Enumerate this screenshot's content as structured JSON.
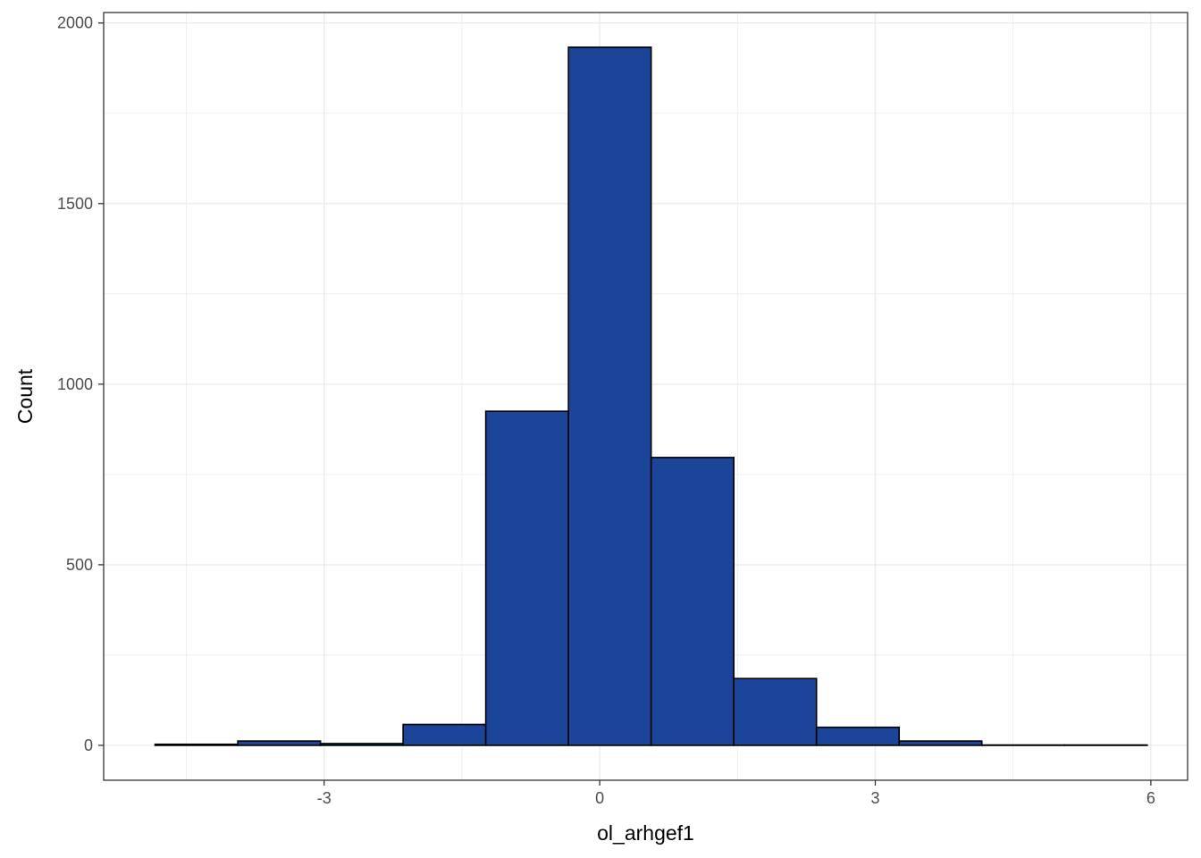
{
  "chart_data": {
    "type": "bar",
    "subtype": "histogram",
    "title": "",
    "xlabel": "ol_arhgef1",
    "ylabel": "Count",
    "bins": [
      {
        "x0": -4.84,
        "x1": -3.94,
        "count": 3
      },
      {
        "x0": -3.94,
        "x1": -3.04,
        "count": 12
      },
      {
        "x0": -3.04,
        "x1": -2.14,
        "count": 5
      },
      {
        "x0": -2.14,
        "x1": -1.24,
        "count": 58
      },
      {
        "x0": -1.24,
        "x1": -0.34,
        "count": 925
      },
      {
        "x0": -0.34,
        "x1": 0.56,
        "count": 1933
      },
      {
        "x0": 0.56,
        "x1": 1.46,
        "count": 797
      },
      {
        "x0": 1.46,
        "x1": 2.36,
        "count": 185
      },
      {
        "x0": 2.36,
        "x1": 3.26,
        "count": 50
      },
      {
        "x0": 3.26,
        "x1": 4.16,
        "count": 12
      },
      {
        "x0": 4.16,
        "x1": 5.06,
        "count": 1
      },
      {
        "x0": 5.06,
        "x1": 5.96,
        "count": 1
      }
    ],
    "xlim": [
      -5.4,
      6.4
    ],
    "ylim": [
      -96.6,
      2029
    ],
    "x_ticks": [
      -3,
      0,
      3,
      6
    ],
    "x_minor": [
      -4.5,
      -1.5,
      1.5,
      4.5
    ],
    "y_ticks": [
      0,
      500,
      1000,
      1500,
      2000
    ],
    "y_minor": [
      250,
      750,
      1250,
      1750
    ],
    "x_tick_labels": [
      "-3",
      "0",
      "3",
      "6"
    ],
    "y_tick_labels": [
      "0",
      "500",
      "1000",
      "1500",
      "2000"
    ],
    "bar_fill": "#1a4599",
    "bar_outline": "#000000",
    "grid": true,
    "grid_color": "#ebebeb",
    "panel_border": "#333333",
    "theme": "bw"
  }
}
